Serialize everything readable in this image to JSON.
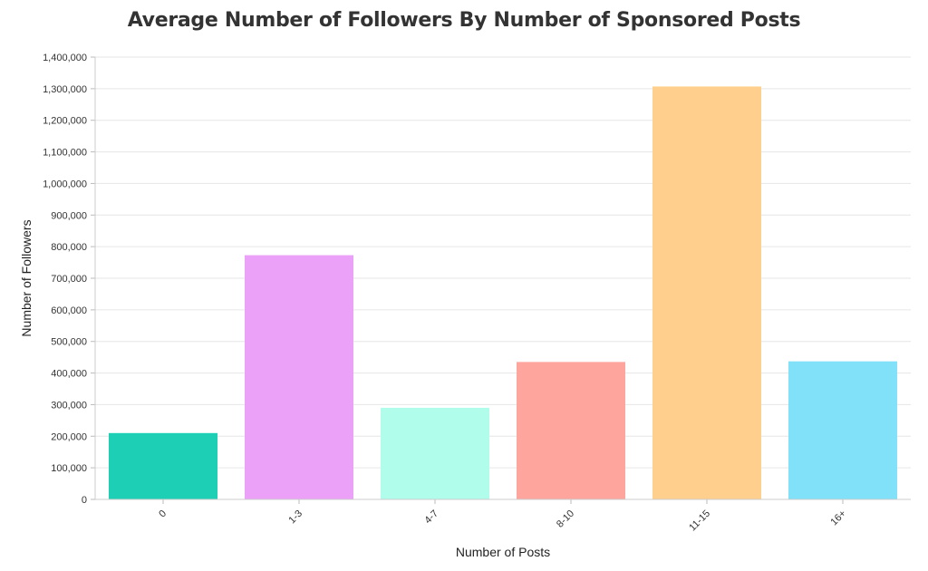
{
  "chart_data": {
    "type": "bar",
    "title": "Average Number of Followers By Number of Sponsored Posts",
    "xlabel": "Number of Posts",
    "ylabel": "Number of Followers",
    "categories": [
      "0",
      "1-3",
      "4-7",
      "8-10",
      "11-15",
      "16+"
    ],
    "values": [
      210000,
      773000,
      290000,
      435000,
      1307000,
      437000
    ],
    "colors": [
      "#1ccfb5",
      "#eba1f8",
      "#b0fdec",
      "#fea59e",
      "#ffd08d",
      "#80e1f9"
    ],
    "ylim": [
      0,
      1400000
    ],
    "yticks": [
      0,
      100000,
      200000,
      300000,
      400000,
      500000,
      600000,
      700000,
      800000,
      900000,
      1000000,
      1100000,
      1200000,
      1300000,
      1400000
    ],
    "ytick_labels": [
      "0",
      "100,000",
      "200,000",
      "300,000",
      "400,000",
      "500,000",
      "600,000",
      "700,000",
      "800,000",
      "900,000",
      "1,000,000",
      "1,100,000",
      "1,200,000",
      "1,300,000",
      "1,400,000"
    ],
    "grid": true,
    "legend": "none"
  }
}
